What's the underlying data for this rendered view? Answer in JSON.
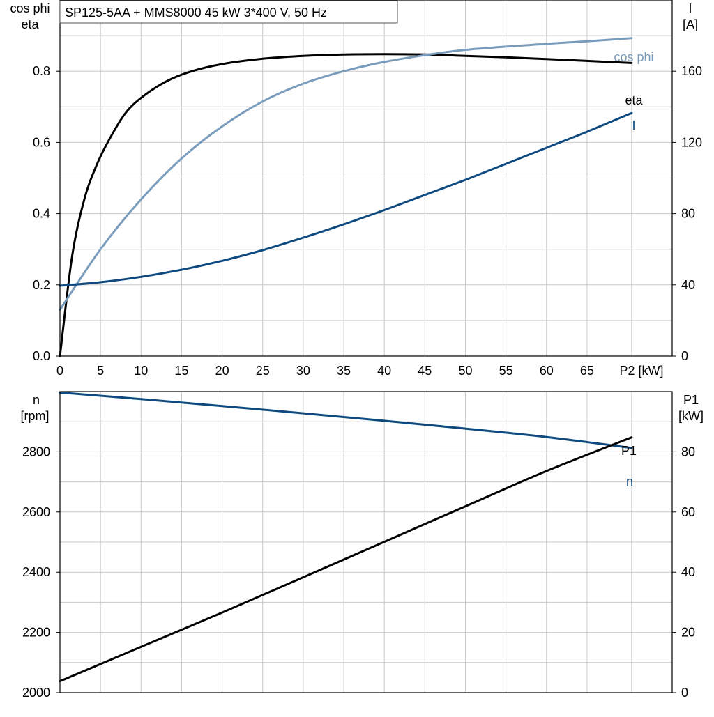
{
  "chart_data": [
    {
      "type": "line",
      "title": "SP125-5AA + MMS8000   45 kW   3*400 V, 50 Hz",
      "xlabel": "P2 [kW]",
      "xlim": [
        0,
        75.5
      ],
      "xticks": [
        0,
        5,
        10,
        15,
        20,
        25,
        30,
        35,
        40,
        45,
        50,
        55,
        60,
        65
      ],
      "xtick_labels": [
        "0",
        "5",
        "10",
        "15",
        "20",
        "25",
        "30",
        "35",
        "40",
        "45",
        "50",
        "55",
        "60",
        "65"
      ],
      "x_axis_end_label": "P2 [kW]",
      "ylabel_left": [
        "cos phi",
        "eta"
      ],
      "ylim_left": [
        0,
        1.0
      ],
      "yticks_left": [
        0.0,
        0.2,
        0.4,
        0.6,
        0.8
      ],
      "ytick_labels_left": [
        "0.0",
        "0.2",
        "0.4",
        "0.6",
        "0.8"
      ],
      "ylabel_right": [
        "I",
        "[A]"
      ],
      "ylim_right": [
        0,
        200
      ],
      "yticks_right": [
        0,
        40,
        80,
        120,
        160
      ],
      "ytick_labels_right": [
        "0",
        "40",
        "80",
        "120",
        "160"
      ],
      "grid": true,
      "series": [
        {
          "name": "eta",
          "axis": "left",
          "color": "#000000",
          "x": [
            0,
            1.5,
            3,
            4.5,
            6,
            8,
            10,
            13,
            16,
            20,
            25,
            30,
            35,
            40,
            45,
            50,
            55,
            60,
            65,
            70.5
          ],
          "y": [
            0,
            0.28,
            0.44,
            0.535,
            0.605,
            0.68,
            0.725,
            0.77,
            0.798,
            0.82,
            0.835,
            0.843,
            0.847,
            0.848,
            0.847,
            0.843,
            0.839,
            0.834,
            0.829,
            0.823
          ]
        },
        {
          "name": "cos phi",
          "axis": "left",
          "color": "#7a9cbc",
          "x": [
            0,
            5,
            10,
            15,
            20,
            25,
            30,
            35,
            40,
            45,
            50,
            55,
            60,
            65,
            70.5
          ],
          "y": [
            0.13,
            0.3,
            0.44,
            0.555,
            0.645,
            0.715,
            0.765,
            0.8,
            0.826,
            0.845,
            0.86,
            0.869,
            0.877,
            0.884,
            0.893
          ]
        },
        {
          "name": "I",
          "axis": "right",
          "color": "#0e4a80",
          "x": [
            0,
            5,
            10,
            15,
            20,
            25,
            30,
            35,
            40,
            45,
            50,
            55,
            60,
            65,
            70.5
          ],
          "y": [
            39.5,
            41.5,
            44.5,
            48.5,
            53.5,
            59.5,
            66.5,
            74,
            82,
            90.5,
            99,
            108,
            117,
            126,
            136.5
          ]
        }
      ]
    },
    {
      "type": "line",
      "xlim": [
        0,
        75.5
      ],
      "xticks": [
        0,
        5,
        10,
        15,
        20,
        25,
        30,
        35,
        40,
        45,
        50,
        55,
        60,
        65
      ],
      "ylabel_left": [
        "n",
        "[rpm]"
      ],
      "ylim_left": [
        2000,
        3000
      ],
      "yticks_left": [
        2000,
        2200,
        2400,
        2600,
        2800
      ],
      "ytick_labels_left": [
        "2000",
        "2200",
        "2400",
        "2600",
        "2800"
      ],
      "ylabel_right": [
        "P1",
        "[kW]"
      ],
      "ylim_right": [
        0,
        100
      ],
      "yticks_right": [
        0,
        20,
        40,
        60,
        80
      ],
      "ytick_labels_right": [
        "0",
        "20",
        "40",
        "60",
        "80"
      ],
      "grid": true,
      "series": [
        {
          "name": "n",
          "axis": "left",
          "color": "#0e4a80",
          "x": [
            0,
            10,
            20,
            30,
            40,
            50,
            60,
            70.5
          ],
          "y": [
            2997,
            2975,
            2952,
            2928,
            2903,
            2877,
            2849,
            2813
          ]
        },
        {
          "name": "P1",
          "axis": "right",
          "color": "#000000",
          "x": [
            0,
            10,
            20,
            30,
            40,
            50,
            60,
            70.5
          ],
          "y": [
            3.8,
            15.2,
            26.6,
            38.3,
            50.1,
            61.9,
            73.6,
            84.8
          ]
        }
      ]
    }
  ]
}
